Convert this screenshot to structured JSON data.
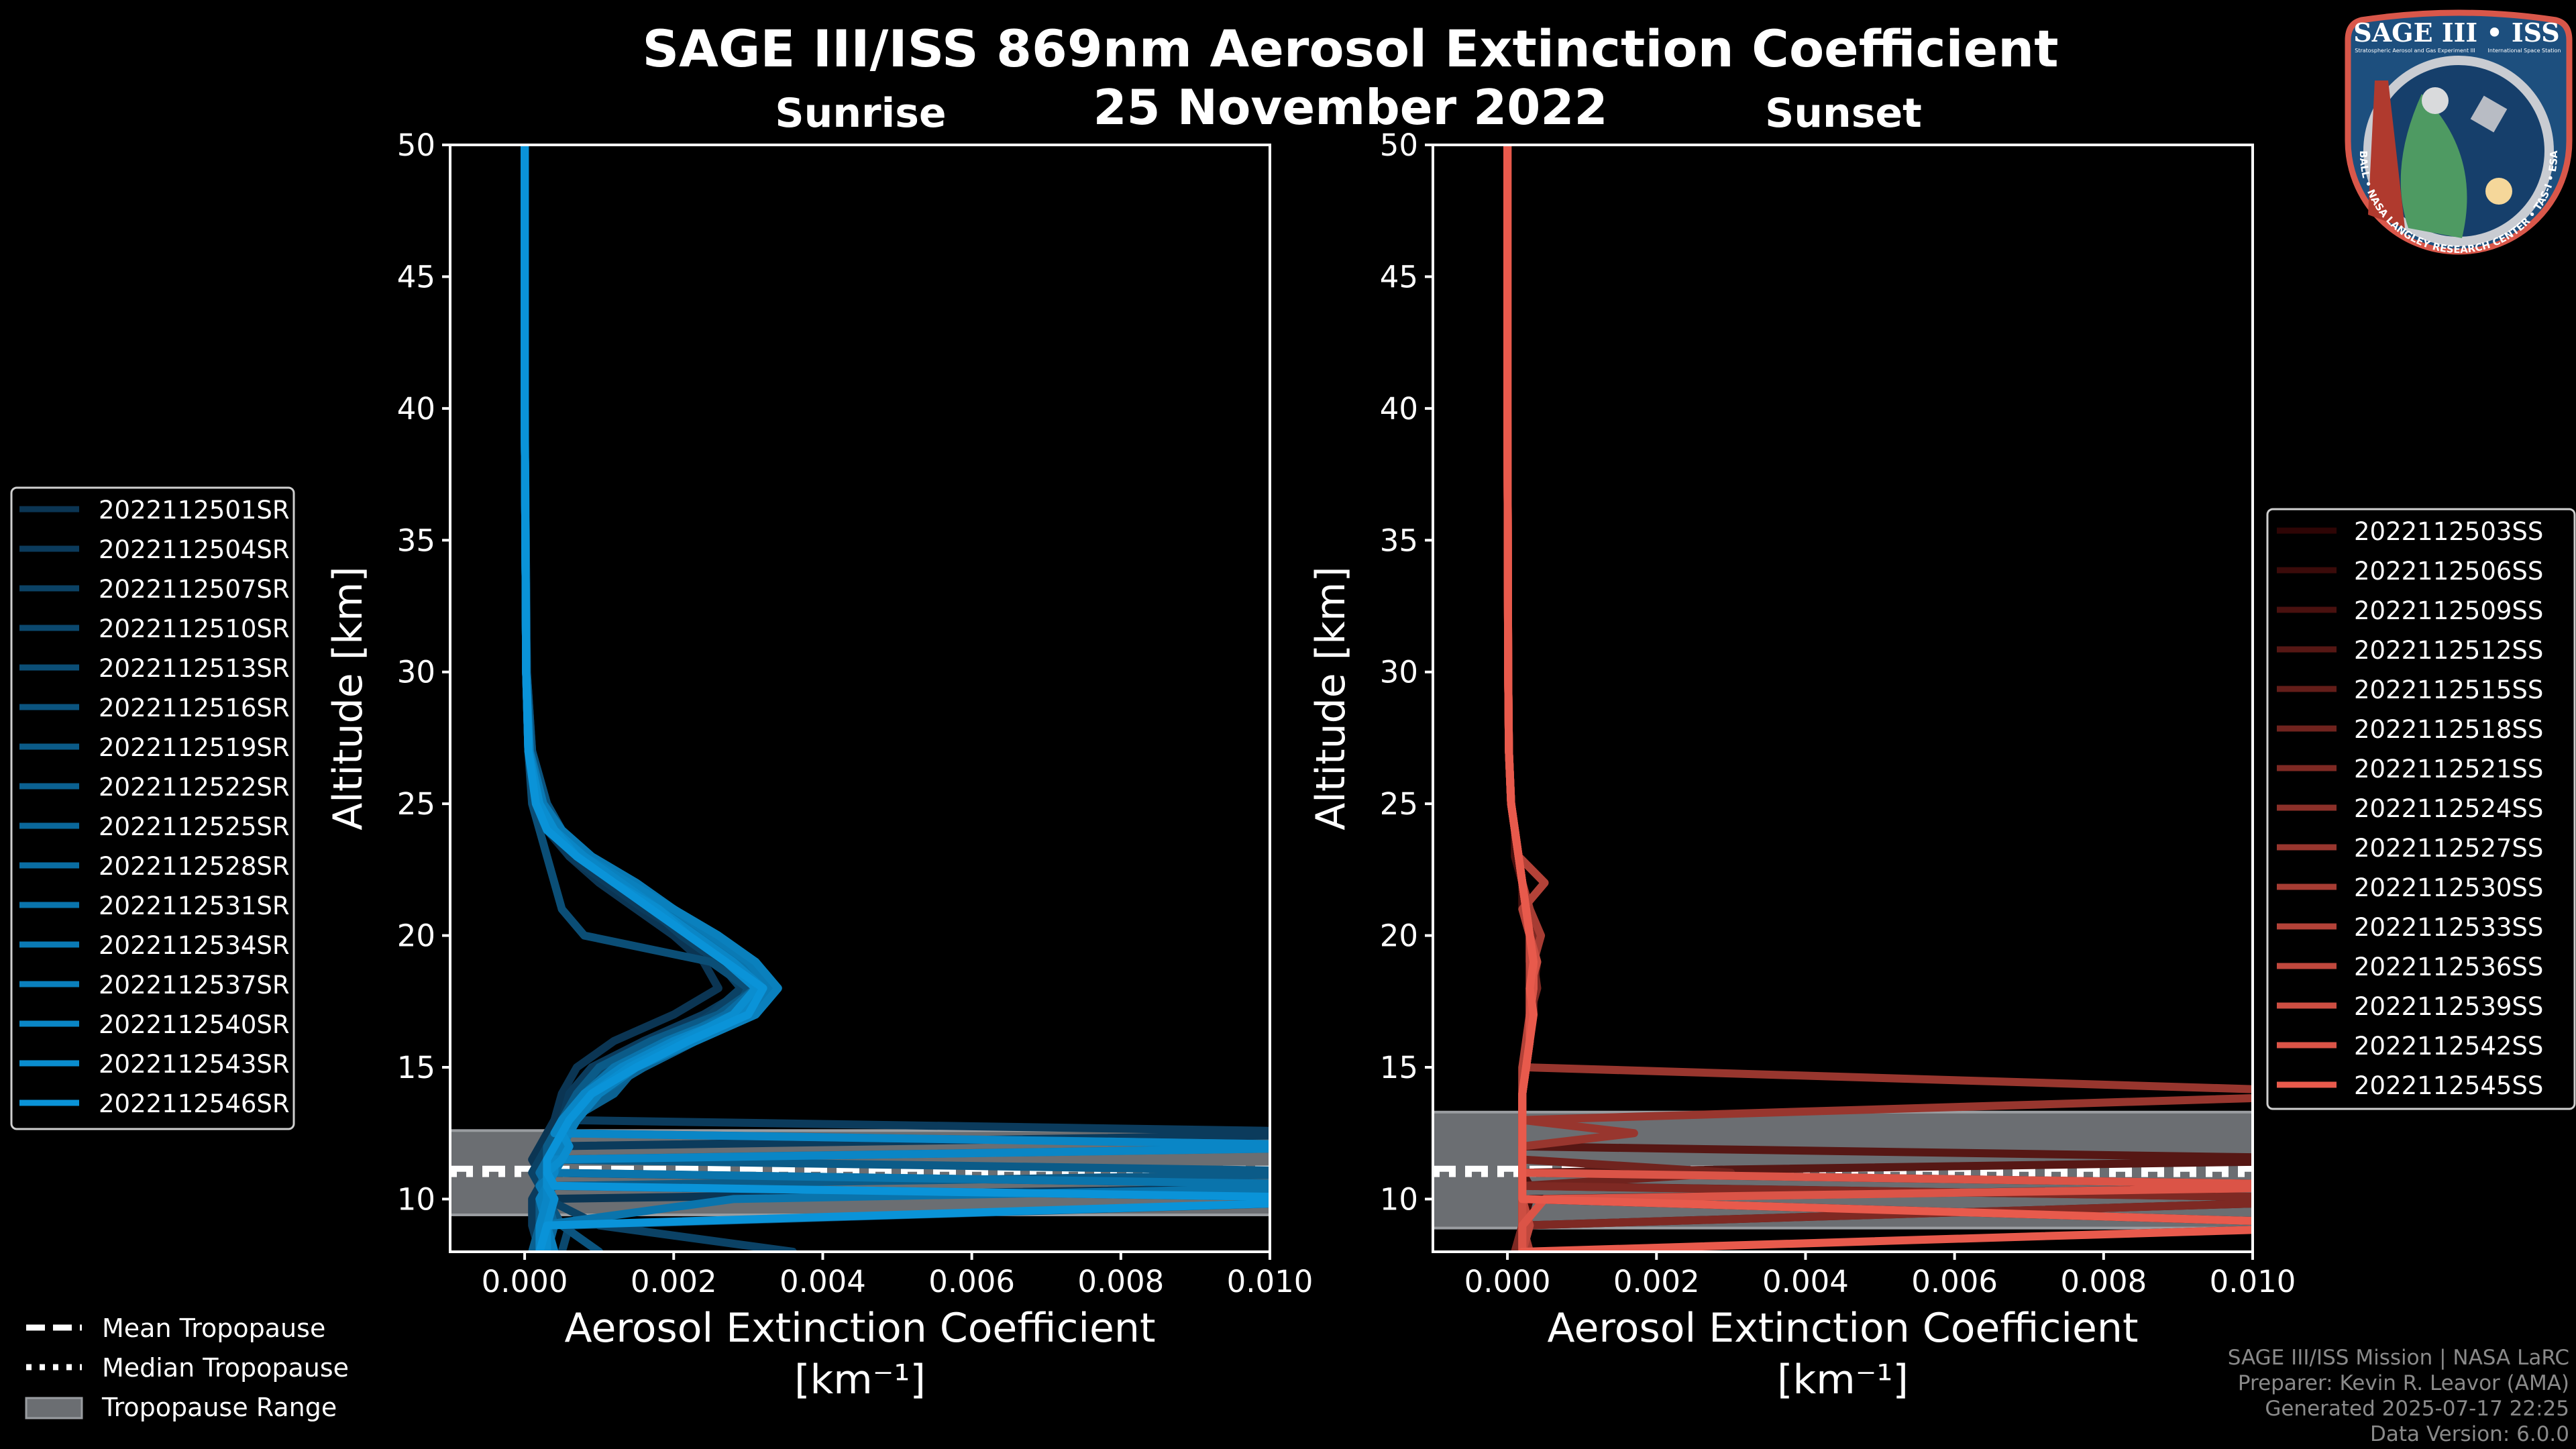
{
  "header": {
    "title": "SAGE III/ISS 869nm Aerosol Extinction Coefficient",
    "date": "25 November 2022"
  },
  "logo": {
    "title": "SAGE III • ISS",
    "subtitle_left": "Stratospheric Aerosol and Gas Experiment III",
    "subtitle_right": "International Space Station",
    "ring_text": "BALL • NASA LANGLEY RESEARCH CENTER • TAS-I • ESA",
    "colors": {
      "fill": "#1d4f7e",
      "border": "#d9574a",
      "ring": "#c9ccd2"
    }
  },
  "footer": {
    "line1": "SAGE III/ISS Mission | NASA LaRC",
    "line2": "Preparer: Kevin R. Leavor (AMA)",
    "line3": "Generated 2025-07-17 22:25",
    "line4": "Data Version: 6.0.0"
  },
  "tropopause_legend": {
    "mean": "Mean Tropopause",
    "median": "Median Tropopause",
    "range": "Tropopause Range"
  },
  "chart_data": [
    {
      "type": "line",
      "title": "Sunrise",
      "xlabel": "Aerosol Extinction Coefficient",
      "xlabel_units": "[km⁻¹]",
      "ylabel": "Altitude [km]",
      "xlim": [
        -0.001,
        0.01
      ],
      "ylim": [
        8,
        50
      ],
      "xticks": [
        "0.000",
        "0.002",
        "0.004",
        "0.006",
        "0.008",
        "0.010"
      ],
      "xtick_values": [
        0,
        0.002,
        0.004,
        0.006,
        0.008,
        0.01
      ],
      "yticks": [
        10,
        15,
        20,
        25,
        30,
        35,
        40,
        45,
        50
      ],
      "grid": false,
      "legend": "left-outside",
      "color_start": "#0b3553",
      "color_end": "#0a93d8",
      "tropopause": {
        "mean": 11.15,
        "median": 10.95,
        "range": [
          9.4,
          12.6
        ]
      },
      "value_multiplier": 0.001,
      "altitude": [
        8,
        9,
        10,
        10.5,
        11,
        11.5,
        12,
        12.5,
        13,
        14,
        15,
        16,
        17,
        18,
        19,
        20,
        21,
        22,
        23,
        24,
        25,
        27,
        30,
        40,
        50
      ],
      "series": [
        {
          "name": "2022112501SR",
          "values": [
            0.4,
            0.3,
            0.2,
            12,
            0.2,
            0.1,
            0.2,
            0.3,
            0.4,
            0.5,
            0.7,
            1.2,
            2.0,
            2.6,
            2.4,
            2.0,
            1.5,
            1.0,
            0.6,
            0.3,
            0.15,
            0.05,
            0.02,
            0,
            0
          ]
        },
        {
          "name": "2022112504SR",
          "values": [
            0.2,
            0.1,
            0.1,
            0.2,
            0.3,
            0.2,
            0.3,
            12,
            0.5,
            0.6,
            0.9,
            1.6,
            2.4,
            3.0,
            2.7,
            2.2,
            1.6,
            1.1,
            0.6,
            0.35,
            0.2,
            0.05,
            0.02,
            0,
            0
          ]
        },
        {
          "name": "2022112507SR",
          "values": [
            3.6,
            1.0,
            0.3,
            0.2,
            0.1,
            0.2,
            0.3,
            0.4,
            0.5,
            0.8,
            1.2,
            1.9,
            2.5,
            2.9,
            2.6,
            2.1,
            1.7,
            1.2,
            0.8,
            0.5,
            0.3,
            0.1,
            0.03,
            0,
            0
          ]
        },
        {
          "name": "2022112510SR",
          "values": [
            0.5,
            0.6,
            12,
            0.3,
            0.2,
            0.3,
            0.4,
            0.5,
            0.6,
            0.7,
            1.1,
            1.8,
            2.7,
            3.2,
            2.9,
            2.3,
            1.9,
            1.3,
            0.8,
            0.5,
            0.25,
            0.08,
            0.02,
            0,
            0
          ]
        },
        {
          "name": "2022112513SR",
          "values": [
            0.2,
            0.3,
            0.4,
            0.3,
            0.2,
            0.3,
            0.4,
            0.6,
            0.7,
            0.9,
            1.3,
            2.0,
            2.8,
            3.0,
            2.5,
            0.8,
            0.5,
            0.4,
            0.3,
            0.2,
            0.1,
            0.05,
            0.02,
            0,
            0
          ]
        },
        {
          "name": "2022112516SR",
          "values": [
            1.0,
            0.5,
            0.3,
            0.2,
            0.3,
            0.3,
            0.4,
            0.5,
            0.6,
            0.8,
            1.4,
            2.1,
            2.9,
            3.3,
            2.8,
            2.2,
            1.8,
            1.4,
            0.9,
            0.5,
            0.3,
            0.1,
            0.03,
            0,
            0
          ]
        },
        {
          "name": "2022112519SR",
          "values": [
            0.3,
            0.2,
            0.2,
            0.4,
            12,
            0.3,
            0.3,
            0.4,
            0.5,
            0.7,
            1.0,
            1.7,
            2.6,
            3.1,
            2.7,
            2.3,
            1.7,
            1.2,
            0.7,
            0.4,
            0.2,
            0.06,
            0.02,
            0,
            0
          ]
        },
        {
          "name": "2022112522SR",
          "values": [
            0.1,
            0.2,
            0.3,
            0.3,
            0.4,
            0.3,
            12,
            0.5,
            0.6,
            1.2,
            1.5,
            2.2,
            3.0,
            3.2,
            2.9,
            2.4,
            1.9,
            1.3,
            0.8,
            0.4,
            0.2,
            0.06,
            0.02,
            0,
            0
          ]
        },
        {
          "name": "2022112525SR",
          "values": [
            0.3,
            0.4,
            0.3,
            0.2,
            0.3,
            0.4,
            0.5,
            0.6,
            0.7,
            1.0,
            1.6,
            2.3,
            3.1,
            3.4,
            3.0,
            2.5,
            2.0,
            1.4,
            0.8,
            0.45,
            0.2,
            0.06,
            0.02,
            0,
            0
          ]
        },
        {
          "name": "2022112528SR",
          "values": [
            0.2,
            0.3,
            0.2,
            0.3,
            0.2,
            0.3,
            0.4,
            0.5,
            0.6,
            0.9,
            1.3,
            2.0,
            2.7,
            3.1,
            2.8,
            2.4,
            1.8,
            1.3,
            0.7,
            0.4,
            0.2,
            0.05,
            0.02,
            0,
            0
          ]
        },
        {
          "name": "2022112531SR",
          "values": [
            0.3,
            0.2,
            2.8,
            12,
            0.3,
            0.4,
            0.5,
            0.5,
            0.6,
            0.8,
            1.2,
            1.9,
            2.8,
            3.2,
            2.9,
            2.4,
            1.9,
            1.3,
            0.8,
            0.4,
            0.2,
            0.06,
            0.02,
            0,
            0
          ]
        },
        {
          "name": "2022112534SR",
          "values": [
            0.2,
            0.3,
            0.3,
            0.2,
            0.4,
            0.5,
            0.4,
            0.6,
            0.7,
            0.9,
            1.4,
            2.2,
            3.0,
            3.3,
            3.0,
            2.5,
            2.0,
            1.5,
            0.9,
            0.5,
            0.25,
            0.07,
            0.02,
            0,
            0
          ]
        },
        {
          "name": "2022112537SR",
          "values": [
            0.4,
            0.3,
            0.2,
            0.3,
            0.3,
            0.4,
            0.5,
            0.6,
            0.7,
            1.0,
            1.5,
            2.3,
            3.1,
            3.4,
            3.1,
            2.6,
            2.0,
            1.4,
            0.8,
            0.4,
            0.2,
            0.06,
            0.02,
            0,
            0
          ]
        },
        {
          "name": "2022112540SR",
          "values": [
            0.2,
            0.2,
            0.3,
            0.3,
            0.4,
            0.4,
            12,
            0.4,
            0.5,
            0.8,
            1.3,
            2.0,
            2.9,
            3.2,
            2.8,
            2.3,
            1.8,
            1.3,
            0.8,
            0.4,
            0.2,
            0.06,
            0.02,
            0,
            0
          ]
        },
        {
          "name": "2022112543SR",
          "values": [
            0.3,
            0.3,
            0.4,
            0.3,
            0.3,
            0.5,
            0.6,
            0.5,
            0.6,
            0.9,
            1.4,
            2.1,
            2.8,
            3.1,
            2.7,
            2.2,
            1.8,
            1.2,
            0.7,
            0.4,
            0.2,
            0.05,
            0.02,
            0,
            0
          ]
        },
        {
          "name": "2022112546SR",
          "values": [
            0.2,
            0.3,
            12,
            0.4,
            0.3,
            0.3,
            0.4,
            0.5,
            0.6,
            0.9,
            1.5,
            2.2,
            3.0,
            3.2,
            2.7,
            2.2,
            1.7,
            1.2,
            0.7,
            0.3,
            0.15,
            0.05,
            0.02,
            0,
            0
          ]
        }
      ]
    },
    {
      "type": "line",
      "title": "Sunset",
      "xlabel": "Aerosol Extinction Coefficient",
      "xlabel_units": "[km⁻¹]",
      "ylabel": "Altitude [km]",
      "xlim": [
        -0.001,
        0.01
      ],
      "ylim": [
        8,
        50
      ],
      "xticks": [
        "0.000",
        "0.002",
        "0.004",
        "0.006",
        "0.008",
        "0.010"
      ],
      "xtick_values": [
        0,
        0.002,
        0.004,
        0.006,
        0.008,
        0.01
      ],
      "yticks": [
        10,
        15,
        20,
        25,
        30,
        35,
        40,
        45,
        50
      ],
      "grid": false,
      "legend": "right-outside",
      "color_start": "#2e0505",
      "color_end": "#e85a4c",
      "tropopause": {
        "mean": 11.15,
        "median": 10.95,
        "range": [
          8.9,
          13.3
        ]
      },
      "value_multiplier": 0.001,
      "altitude": [
        8,
        9,
        10,
        10.5,
        11,
        11.5,
        12,
        12.5,
        13,
        14,
        15,
        16,
        17,
        18,
        19,
        20,
        21,
        22,
        23,
        24,
        25,
        27,
        30,
        40,
        50
      ],
      "series": [
        {
          "name": "2022112503SS",
          "values": [
            0.2,
            12,
            0.2,
            0.2,
            0.2,
            0.2,
            0.2,
            0.2,
            0.2,
            0.2,
            0.25,
            0.3,
            0.3,
            0.35,
            0.35,
            0.3,
            0.25,
            0.2,
            0.15,
            0.1,
            0.05,
            0.02,
            0.01,
            0,
            0
          ]
        },
        {
          "name": "2022112506SS",
          "values": [
            0.1,
            0.2,
            0.3,
            12,
            0.2,
            0.2,
            0.2,
            0.2,
            0.2,
            0.2,
            0.2,
            0.3,
            0.3,
            0.3,
            0.35,
            0.3,
            0.25,
            0.2,
            0.15,
            0.1,
            0.05,
            0.02,
            0.01,
            0,
            0
          ]
        },
        {
          "name": "2022112509SS",
          "values": [
            0.2,
            0.2,
            12,
            0.3,
            0.2,
            0.2,
            0.2,
            0.2,
            0.2,
            0.2,
            0.25,
            0.25,
            0.3,
            0.3,
            0.3,
            0.3,
            0.2,
            0.2,
            0.1,
            0.1,
            0.05,
            0.02,
            0.01,
            0,
            0
          ]
        },
        {
          "name": "2022112512SS",
          "values": [
            0.2,
            0.3,
            0.2,
            0.2,
            0.2,
            12,
            0.2,
            0.2,
            0.2,
            0.2,
            0.25,
            0.3,
            0.3,
            0.35,
            0.4,
            0.3,
            0.25,
            0.2,
            0.15,
            0.1,
            0.05,
            0.02,
            0.01,
            0,
            0
          ]
        },
        {
          "name": "2022112515SS",
          "values": [
            0.3,
            0.2,
            0.2,
            0.2,
            0.2,
            0.2,
            0.2,
            0.2,
            0.2,
            0.2,
            0.25,
            0.3,
            0.35,
            0.35,
            0.3,
            0.3,
            0.25,
            0.2,
            0.15,
            0.1,
            0.05,
            0.02,
            0.01,
            0,
            0
          ]
        },
        {
          "name": "2022112518SS",
          "values": [
            0.2,
            0.2,
            0.2,
            0.2,
            3.0,
            0.2,
            0.2,
            0.2,
            0.2,
            0.2,
            0.2,
            0.3,
            0.3,
            0.3,
            0.35,
            0.3,
            0.25,
            0.2,
            0.15,
            0.1,
            0.05,
            0.02,
            0.01,
            0,
            0
          ]
        },
        {
          "name": "2022112521SS",
          "values": [
            0.1,
            0.2,
            12,
            0.2,
            0.2,
            0.2,
            0.2,
            0.2,
            0.2,
            0.2,
            0.25,
            0.3,
            0.3,
            0.4,
            0.35,
            0.35,
            0.3,
            0.2,
            0.15,
            0.1,
            0.05,
            0.02,
            0.01,
            0,
            0
          ]
        },
        {
          "name": "2022112524SS",
          "values": [
            0.2,
            0.2,
            0.2,
            0.2,
            0.2,
            0.2,
            0.2,
            0.2,
            0.2,
            0.2,
            0.25,
            0.3,
            0.3,
            0.35,
            0.3,
            0.3,
            0.25,
            0.2,
            0.15,
            0.1,
            0.05,
            0.02,
            0.01,
            0,
            0
          ]
        },
        {
          "name": "2022112527SS",
          "values": [
            0.2,
            0.2,
            0.2,
            0.2,
            0.2,
            0.2,
            0.2,
            1.7,
            0.2,
            12,
            0.25,
            0.3,
            0.3,
            0.3,
            0.35,
            0.3,
            0.25,
            0.2,
            0.15,
            0.1,
            0.05,
            0.02,
            0.01,
            0,
            0
          ]
        },
        {
          "name": "2022112530SS",
          "values": [
            0.3,
            0.2,
            0.2,
            0.2,
            0.2,
            0.2,
            0.2,
            0.2,
            0.2,
            0.2,
            0.25,
            0.3,
            0.3,
            0.35,
            0.35,
            0.45,
            0.3,
            0.2,
            0.15,
            0.1,
            0.05,
            0.02,
            0.01,
            0,
            0
          ]
        },
        {
          "name": "2022112533SS",
          "values": [
            0.2,
            0.2,
            0.2,
            0.2,
            0.2,
            0.2,
            0.2,
            0.2,
            0.2,
            0.2,
            0.2,
            0.25,
            0.3,
            0.3,
            0.3,
            0.3,
            0.2,
            0.5,
            0.15,
            0.1,
            0.05,
            0.02,
            0.01,
            0,
            0
          ]
        },
        {
          "name": "2022112536SS",
          "values": [
            0.2,
            0.3,
            0.2,
            0.2,
            0.2,
            0.2,
            0.2,
            0.2,
            0.2,
            0.2,
            0.25,
            0.3,
            0.3,
            0.35,
            0.3,
            0.3,
            0.25,
            0.2,
            0.15,
            0.1,
            0.05,
            0.02,
            0.01,
            0,
            0
          ]
        },
        {
          "name": "2022112539SS",
          "values": [
            0.2,
            0.2,
            0.2,
            0.2,
            0.2,
            0.2,
            0.2,
            0.2,
            0.2,
            0.2,
            0.25,
            0.3,
            0.3,
            0.3,
            0.4,
            0.3,
            0.25,
            0.2,
            0.15,
            0.1,
            0.05,
            0.02,
            0.01,
            0,
            0
          ]
        },
        {
          "name": "2022112542SS",
          "values": [
            0.2,
            0.2,
            0.5,
            12,
            0.2,
            0.2,
            0.2,
            0.2,
            0.2,
            0.2,
            0.25,
            0.3,
            0.3,
            0.35,
            0.35,
            0.3,
            0.25,
            0.2,
            0.15,
            0.1,
            0.05,
            0.02,
            0.01,
            0,
            0
          ]
        },
        {
          "name": "2022112545SS",
          "values": [
            0.2,
            12,
            0.2,
            0.2,
            0.2,
            0.2,
            0.2,
            0.2,
            0.2,
            0.2,
            0.25,
            0.3,
            0.35,
            0.3,
            0.35,
            0.3,
            0.25,
            0.2,
            0.15,
            0.1,
            0.05,
            0.02,
            0.01,
            0,
            0
          ]
        }
      ]
    }
  ]
}
